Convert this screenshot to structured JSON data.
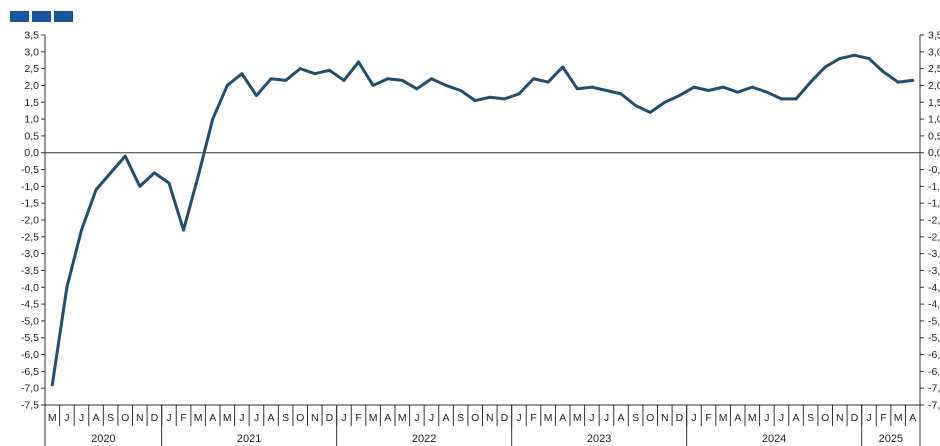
{
  "page": {
    "title": "",
    "logo_icon": "bank-logo-icon"
  },
  "colors": {
    "line": "#1f4e6e",
    "axis": "#333333",
    "logo": "#1a56a0"
  },
  "chart_data": {
    "type": "line",
    "title": "",
    "xlabel": "",
    "ylabel": "",
    "ylim": [
      -7.5,
      3.5
    ],
    "ytick_step": 0.5,
    "grid": false,
    "right_axis": true,
    "x_start": "2020-05",
    "x_end": "2025-04",
    "month_labels": [
      "M",
      "J",
      "J",
      "A",
      "S",
      "O",
      "N",
      "D",
      "J",
      "F",
      "M",
      "A",
      "M",
      "J",
      "J",
      "A",
      "S",
      "O",
      "N",
      "D",
      "J",
      "F",
      "M",
      "A",
      "M",
      "J",
      "J",
      "A",
      "S",
      "O",
      "N",
      "D",
      "J",
      "F",
      "M",
      "A",
      "M",
      "J",
      "J",
      "A",
      "S",
      "O",
      "N",
      "D",
      "J",
      "F",
      "M",
      "A",
      "M",
      "J",
      "J",
      "A",
      "S",
      "O",
      "N",
      "D",
      "J",
      "F",
      "M",
      "A"
    ],
    "years": [
      {
        "label": "2020",
        "months": 8
      },
      {
        "label": "2021",
        "months": 12
      },
      {
        "label": "2022",
        "months": 12
      },
      {
        "label": "2023",
        "months": 12
      },
      {
        "label": "2024",
        "months": 12
      },
      {
        "label": "2025",
        "months": 4
      }
    ],
    "series": [
      {
        "name": "",
        "values": [
          -6.9,
          -4.0,
          -2.3,
          -1.1,
          -0.6,
          -0.1,
          -1.0,
          -0.6,
          -0.9,
          -2.3,
          -0.7,
          1.0,
          2.0,
          2.35,
          1.7,
          2.2,
          2.15,
          2.5,
          2.35,
          2.45,
          2.15,
          2.7,
          2.0,
          2.2,
          2.15,
          1.9,
          2.2,
          2.0,
          1.85,
          1.55,
          1.65,
          1.6,
          1.75,
          2.2,
          2.1,
          2.55,
          1.9,
          1.95,
          1.85,
          1.75,
          1.4,
          1.2,
          1.5,
          1.7,
          1.95,
          1.85,
          1.95,
          1.8,
          1.95,
          1.8,
          1.6,
          1.6,
          2.1,
          2.55,
          2.8,
          2.9,
          2.8,
          2.4,
          2.1,
          2.15
        ]
      }
    ]
  }
}
